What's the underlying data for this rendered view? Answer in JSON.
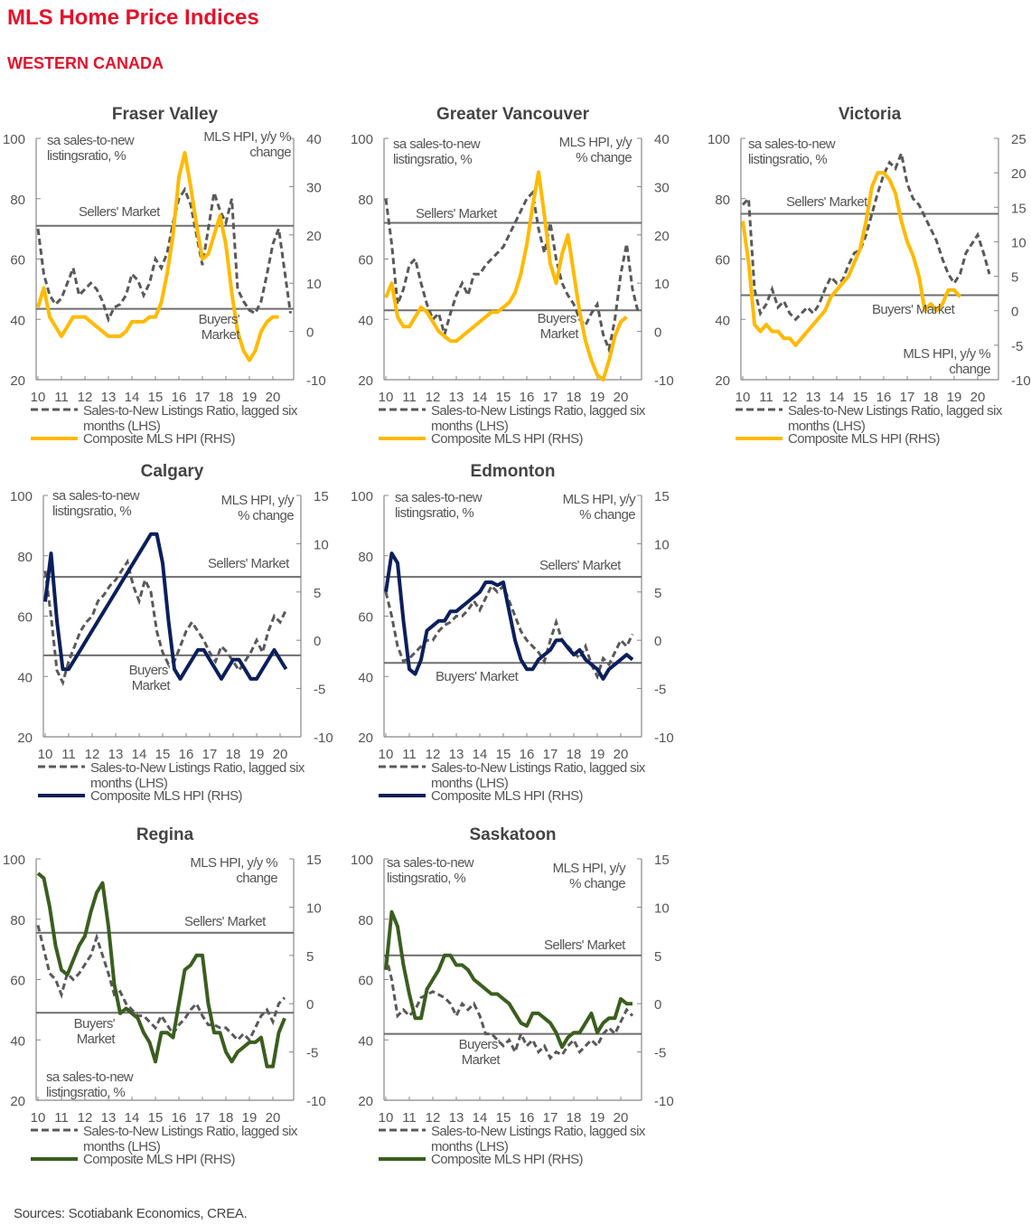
{
  "header": {
    "title": "MLS Home Price Indices",
    "subtitle": "WESTERN CANADA"
  },
  "footer": {
    "source": "Sources: Scotiabank Economics, CREA."
  },
  "colors": {
    "brand_red": "#e4112b",
    "ratio_dash": "#595959",
    "threshold": "#6e6e6e"
  },
  "chart_data": [
    {
      "type": "line",
      "title": "Fraser Valley",
      "hpi_color": "#ffba00",
      "lhs_label": [
        "sa sales-to-new",
        "listingsratio, %"
      ],
      "rhs_label": [
        "MLS HPI, y/y %",
        "change"
      ],
      "sellers_label": [
        "Sellers' Market"
      ],
      "buyers_label": [
        "Buyers'",
        "Market"
      ],
      "lhs_ticks": [
        100,
        80,
        60,
        40,
        20
      ],
      "rhs_ticks": [
        40,
        30,
        20,
        10,
        0,
        -10
      ],
      "ylim_lhs": [
        20,
        100
      ],
      "ylim_rhs": [
        -10,
        40
      ],
      "x_ticks": [
        "10",
        "11",
        "12",
        "13",
        "14",
        "15",
        "16",
        "17",
        "18",
        "19",
        "20"
      ],
      "x_start": 2010,
      "x_step": 0.25,
      "sellers_threshold": 71,
      "buyers_threshold": 43.5,
      "legend": [
        "Sales-to-New Listings Ratio, lagged six",
        "months (LHS)",
        "Composite MLS HPI (RHS)"
      ],
      "ratio": [
        70,
        55,
        48,
        45,
        47,
        52,
        57,
        48,
        50,
        52,
        50,
        46,
        40,
        44,
        45,
        48,
        55,
        53,
        48,
        52,
        60,
        57,
        62,
        72,
        80,
        83,
        78,
        68,
        58,
        70,
        82,
        76,
        72,
        80,
        50,
        46,
        43,
        42,
        46,
        55,
        65,
        70,
        56,
        42
      ],
      "hpi": [
        5,
        9,
        3,
        1,
        -1,
        1,
        3,
        3,
        3,
        2,
        1,
        0,
        -1,
        -1,
        -1,
        0,
        2,
        2,
        2,
        3,
        3,
        6,
        12,
        20,
        32,
        37,
        30,
        22,
        15,
        16,
        20,
        24,
        18,
        8,
        0,
        -4,
        -6,
        -4,
        0,
        2,
        3,
        3
      ]
    },
    {
      "type": "line",
      "title": "Greater Vancouver",
      "hpi_color": "#ffba00",
      "lhs_label": [
        "sa sales-to-new",
        "listingsratio, %"
      ],
      "rhs_label": [
        "MLS HPI, y/y",
        "% change"
      ],
      "sellers_label": [
        "Sellers' Market"
      ],
      "buyers_label": [
        "Buyers'",
        "Market"
      ],
      "lhs_ticks": [
        100,
        80,
        60,
        40,
        20
      ],
      "rhs_ticks": [
        40,
        30,
        20,
        10,
        0,
        -10
      ],
      "ylim_lhs": [
        20,
        100
      ],
      "ylim_rhs": [
        -10,
        40
      ],
      "x_ticks": [
        "10",
        "11",
        "12",
        "13",
        "14",
        "15",
        "16",
        "17",
        "18",
        "19",
        "20"
      ],
      "x_start": 2010,
      "x_step": 0.25,
      "sellers_threshold": 72,
      "buyers_threshold": 43,
      "legend": [
        "Sales-to-New Listings Ratio, lagged six",
        "months (LHS)",
        "Composite MLS HPI (RHS)"
      ],
      "ratio": [
        80,
        65,
        45,
        50,
        58,
        60,
        52,
        45,
        40,
        42,
        35,
        42,
        48,
        52,
        48,
        55,
        55,
        58,
        60,
        62,
        64,
        68,
        72,
        76,
        80,
        82,
        70,
        62,
        72,
        60,
        52,
        48,
        45,
        40,
        38,
        42,
        45,
        35,
        30,
        40,
        55,
        65,
        50,
        42
      ],
      "hpi": [
        7,
        10,
        3,
        1,
        1,
        3,
        5,
        4,
        2,
        0,
        -1,
        -2,
        -2,
        -1,
        0,
        1,
        2,
        3,
        4,
        4,
        5,
        6,
        8,
        12,
        18,
        26,
        33,
        24,
        14,
        10,
        16,
        20,
        12,
        4,
        -2,
        -6,
        -9,
        -10,
        -6,
        -1,
        2,
        3
      ]
    },
    {
      "type": "line",
      "title": "Victoria",
      "hpi_color": "#ffba00",
      "lhs_label": [
        "sa sales-to-new",
        "listingsratio, %"
      ],
      "rhs_label": [
        "MLS HPI, y/y %",
        "change"
      ],
      "sellers_label": [
        "Sellers' Market"
      ],
      "buyers_label": [
        "Buyers' Market"
      ],
      "lhs_ticks": [
        100,
        80,
        60,
        40,
        20
      ],
      "rhs_ticks": [
        25,
        20,
        15,
        10,
        5,
        0,
        -5,
        -10
      ],
      "ylim_lhs": [
        20,
        100
      ],
      "ylim_rhs": [
        -10,
        25
      ],
      "x_ticks": [
        "10",
        "11",
        "12",
        "13",
        "14",
        "15",
        "16",
        "17",
        "18",
        "19",
        "20"
      ],
      "x_start": 2010,
      "x_step": 0.25,
      "sellers_threshold": 75,
      "buyers_threshold": 48,
      "legend": [
        "Sales-to-New Listings Ratio, lagged six",
        "months (LHS)",
        "Composite MLS HPI (RHS)"
      ],
      "ratio": [
        78,
        80,
        50,
        42,
        45,
        50,
        44,
        46,
        42,
        40,
        42,
        44,
        42,
        45,
        50,
        54,
        52,
        53,
        58,
        62,
        63,
        68,
        75,
        82,
        88,
        92,
        90,
        95,
        85,
        80,
        78,
        74,
        70,
        66,
        60,
        55,
        52,
        55,
        62,
        65,
        68,
        62,
        55
      ],
      "hpi": [
        13,
        7,
        -2,
        -3,
        -2,
        -3,
        -3,
        -4,
        -4,
        -5,
        -4,
        -3,
        -2,
        -1,
        0,
        2,
        3,
        4,
        5,
        7,
        9,
        13,
        18,
        20,
        20,
        19,
        17,
        13,
        10,
        8,
        5,
        0,
        1,
        0,
        1,
        3,
        3,
        2
      ]
    },
    {
      "type": "line",
      "title": "Calgary",
      "hpi_color": "#0b1f5c",
      "lhs_label": [
        "sa sales-to-new",
        "listingsratio, %"
      ],
      "rhs_label": [
        "MLS HPI, y/y",
        "% change"
      ],
      "sellers_label": [
        "Sellers' Market"
      ],
      "buyers_label": [
        "Buyers'",
        "Market"
      ],
      "lhs_ticks": [
        100,
        80,
        60,
        40,
        20
      ],
      "rhs_ticks": [
        15,
        10,
        5,
        0,
        -5,
        -10
      ],
      "ylim_lhs": [
        20,
        100
      ],
      "ylim_rhs": [
        -10,
        15
      ],
      "x_ticks": [
        "10",
        "11",
        "12",
        "13",
        "14",
        "15",
        "16",
        "17",
        "18",
        "19",
        "20"
      ],
      "x_start": 2010,
      "x_step": 0.25,
      "sellers_threshold": 73,
      "buyers_threshold": 47,
      "legend": [
        "Sales-to-New Listings Ratio, lagged six",
        "months (LHS)",
        "Composite MLS HPI (RHS)"
      ],
      "ratio": [
        75,
        60,
        42,
        38,
        45,
        50,
        55,
        58,
        60,
        65,
        67,
        70,
        72,
        75,
        78,
        70,
        65,
        72,
        68,
        55,
        48,
        44,
        45,
        50,
        55,
        58,
        55,
        52,
        48,
        45,
        50,
        48,
        45,
        42,
        45,
        48,
        52,
        48,
        55,
        60,
        58,
        62
      ],
      "hpi": [
        4,
        9,
        2,
        -3,
        -3,
        -2,
        -1,
        0,
        1,
        2,
        3,
        4,
        5,
        6,
        7,
        8,
        9,
        10,
        11,
        11,
        8,
        2,
        -3,
        -4,
        -3,
        -2,
        -1,
        -1,
        -2,
        -3,
        -4,
        -3,
        -2,
        -2,
        -3,
        -4,
        -4,
        -3,
        -2,
        -1,
        -2,
        -3
      ]
    },
    {
      "type": "line",
      "title": "Edmonton",
      "hpi_color": "#0b1f5c",
      "lhs_label": [
        "sa sales-to-new",
        "listingsratio, %"
      ],
      "rhs_label": [
        "MLS HPI, y/y",
        "% change"
      ],
      "sellers_label": [
        "Sellers' Market"
      ],
      "buyers_label": [
        "Buyers' Market"
      ],
      "lhs_ticks": [
        100,
        80,
        60,
        40,
        20
      ],
      "rhs_ticks": [
        15,
        10,
        5,
        0,
        -5,
        -10
      ],
      "ylim_lhs": [
        20,
        100
      ],
      "ylim_rhs": [
        -10,
        15
      ],
      "x_ticks": [
        "10",
        "11",
        "12",
        "13",
        "14",
        "15",
        "16",
        "17",
        "18",
        "19",
        "20"
      ],
      "x_start": 2010,
      "x_step": 0.25,
      "sellers_threshold": 73,
      "buyers_threshold": 44.5,
      "legend": [
        "Sales-to-New Listings Ratio, lagged six",
        "months (LHS)",
        "Composite MLS HPI (RHS)"
      ],
      "ratio": [
        68,
        60,
        50,
        45,
        46,
        48,
        50,
        52,
        52,
        55,
        57,
        58,
        60,
        60,
        62,
        65,
        62,
        66,
        70,
        68,
        70,
        65,
        60,
        55,
        52,
        50,
        48,
        45,
        52,
        58,
        52,
        50,
        48,
        46,
        50,
        44,
        40,
        46,
        44,
        48,
        52,
        50,
        54
      ],
      "hpi": [
        5,
        9,
        8,
        2,
        -3,
        -3.5,
        -2,
        1,
        1.5,
        2,
        2,
        3,
        3,
        3.5,
        4,
        4.5,
        5,
        6,
        6,
        5.7,
        6,
        3,
        0,
        -2,
        -3,
        -3,
        -2,
        -1.5,
        -1,
        0,
        0,
        -0.8,
        -1.5,
        -1,
        -2,
        -2.5,
        -3,
        -4,
        -3,
        -2.5,
        -2,
        -1.5,
        -2
      ]
    },
    {
      "type": "line",
      "title": "Regina",
      "hpi_color": "#3b5e1f",
      "lhs_label": [
        "sa sales-to-new",
        "listingsratio, %"
      ],
      "rhs_label": [
        "MLS HPI, y/y %",
        "change"
      ],
      "sellers_label": [
        "Sellers' Market"
      ],
      "buyers_label": [
        "Buyers'",
        "Market"
      ],
      "lhs_ticks": [
        100,
        80,
        60,
        40,
        20
      ],
      "rhs_ticks": [
        15,
        10,
        5,
        0,
        -5,
        -10
      ],
      "ylim_lhs": [
        20,
        100
      ],
      "ylim_rhs": [
        -10,
        15
      ],
      "x_ticks": [
        "10",
        "11",
        "12",
        "13",
        "14",
        "15",
        "16",
        "17",
        "18",
        "19",
        "20"
      ],
      "x_start": 2010,
      "x_step": 0.25,
      "sellers_threshold": 75.5,
      "buyers_threshold": 49,
      "legend": [
        "Sales-to-New Listings Ratio, lagged six",
        "months (LHS)",
        "Composite MLS HPI (RHS)"
      ],
      "ratio": [
        78,
        70,
        62,
        60,
        55,
        62,
        60,
        62,
        65,
        68,
        74,
        68,
        62,
        55,
        56,
        52,
        50,
        48,
        48,
        46,
        44,
        48,
        45,
        42,
        45,
        47,
        50,
        52,
        48,
        45,
        45,
        44,
        44,
        42,
        40,
        42,
        40,
        44,
        48,
        50,
        46,
        52,
        54
      ],
      "hpi": [
        13.5,
        13,
        10,
        6,
        3.5,
        3,
        4.5,
        6,
        7,
        9.5,
        11.5,
        12.5,
        8,
        2,
        -1,
        -0.5,
        -1,
        -1.5,
        -3,
        -4,
        -6,
        -3,
        -3,
        -3.5,
        0,
        3.5,
        4,
        5,
        5,
        0,
        -3,
        -3,
        -5,
        -6,
        -5,
        -4.5,
        -4,
        -4,
        -3.5,
        -6.5,
        -6.5,
        -3,
        -1.5
      ]
    },
    {
      "type": "line",
      "title": "Saskatoon",
      "hpi_color": "#3b5e1f",
      "lhs_label": [
        "sa sales-to-new",
        "listingsratio, %"
      ],
      "rhs_label": [
        "MLS HPI, y/y",
        "% change"
      ],
      "sellers_label": [
        "Sellers' Market"
      ],
      "buyers_label": [
        "Buyers'",
        "Market"
      ],
      "lhs_ticks": [
        100,
        80,
        60,
        40,
        20
      ],
      "rhs_ticks": [
        15,
        10,
        5,
        0,
        -5,
        -10
      ],
      "ylim_lhs": [
        20,
        100
      ],
      "ylim_rhs": [
        -10,
        15
      ],
      "x_ticks": [
        "10",
        "11",
        "12",
        "13",
        "14",
        "15",
        "16",
        "17",
        "18",
        "19",
        "20"
      ],
      "x_start": 2010,
      "x_step": 0.25,
      "sellers_threshold": 68,
      "buyers_threshold": 42,
      "legend": [
        "Sales-to-New Listings Ratio, lagged six",
        "months (LHS)",
        "Composite MLS HPI (RHS)"
      ],
      "ratio": [
        68,
        60,
        48,
        50,
        48,
        50,
        54,
        55,
        56,
        55,
        54,
        52,
        48,
        52,
        50,
        52,
        48,
        42,
        42,
        40,
        38,
        40,
        36,
        42,
        38,
        40,
        36,
        38,
        34,
        36,
        35,
        38,
        40,
        36,
        38,
        40,
        38,
        42,
        44,
        42,
        46,
        50,
        48
      ],
      "hpi": [
        3.5,
        9.5,
        8,
        4,
        1,
        -1.5,
        -1.5,
        1.5,
        2.5,
        3.5,
        5,
        5,
        4,
        4,
        3.5,
        2.5,
        2,
        1.5,
        1,
        1,
        0.5,
        0,
        -1,
        -2,
        -2.3,
        -1,
        -1,
        -1.5,
        -2,
        -3,
        -4.5,
        -3.5,
        -3,
        -3,
        -2,
        -1,
        -3,
        -2,
        -1.5,
        -1.5,
        0.5,
        0,
        0
      ]
    }
  ]
}
